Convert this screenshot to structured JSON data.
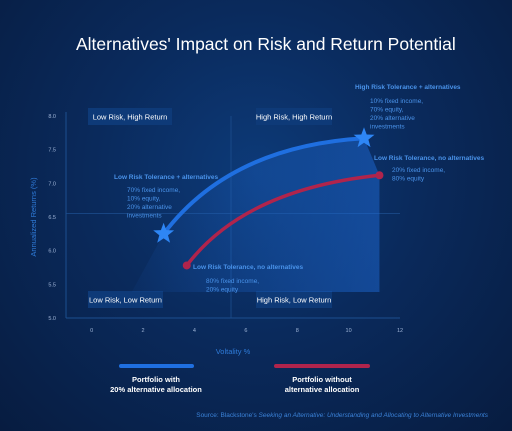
{
  "title": "Alternatives' Impact on Risk and Return Potential",
  "source": {
    "prefix": "Source: Blackstone's ",
    "italic": "Seeking an Alternative: Understanding and Allocating to Alternative Investments"
  },
  "colors": {
    "alt_series": "#1f6fe0",
    "no_alt_series": "#b0244c",
    "quadrant_fill": "#0e3a78",
    "annotation": "#4a93ea"
  },
  "quadrants": {
    "top_left": "Low Risk, High Return",
    "top_right": "High Risk, High Return",
    "bottom_left": "Low Risk, Low Return",
    "bottom_right": "High Risk, Low Return"
  },
  "annotations": {
    "high_alt": {
      "title": "High Risk Tolerance + alternatives",
      "lines": [
        "10% fixed income,",
        "70% equity,",
        "20% alternative",
        "investments"
      ]
    },
    "high_no_alt": {
      "title": "Low Risk Tolerance, no alternatives",
      "lines": [
        "20% fixed income,",
        "80% equity"
      ]
    },
    "low_alt": {
      "title": "Low Risk Tolerance + alternatives",
      "lines": [
        "70% fixed income,",
        "10% equity,",
        "20% alternative",
        "investments"
      ]
    },
    "low_no_alt": {
      "title": "Low Risk Tolerance, no alternatives",
      "lines": [
        "80% fixed income,",
        "20% equity"
      ]
    }
  },
  "legend": {
    "alt": [
      "Portfolio with",
      "20% alternative allocation"
    ],
    "no_alt": [
      "Portfolio without",
      "alternative allocation"
    ]
  },
  "chart_data": {
    "type": "line",
    "xlabel": "Voltality %",
    "ylabel": "Annualized Returns (%)",
    "xlim": [
      -1,
      12
    ],
    "ylim": [
      5.0,
      8.0
    ],
    "x_ticks": [
      0,
      2,
      4,
      6,
      8,
      10,
      12
    ],
    "y_ticks": [
      5.0,
      5.5,
      6.0,
      6.5,
      7.0,
      7.5,
      8.0
    ],
    "series": [
      {
        "name": "Portfolio with 20% alternative allocation",
        "color": "#1f6fe0",
        "marker": "star",
        "start": {
          "x": 2.8,
          "y": 6.25
        },
        "end": {
          "x": 10.6,
          "y": 7.67
        }
      },
      {
        "name": "Portfolio without alternative allocation",
        "color": "#b0244c",
        "marker": "circle",
        "start": {
          "x": 3.7,
          "y": 5.78
        },
        "end": {
          "x": 11.2,
          "y": 7.12
        }
      }
    ]
  }
}
